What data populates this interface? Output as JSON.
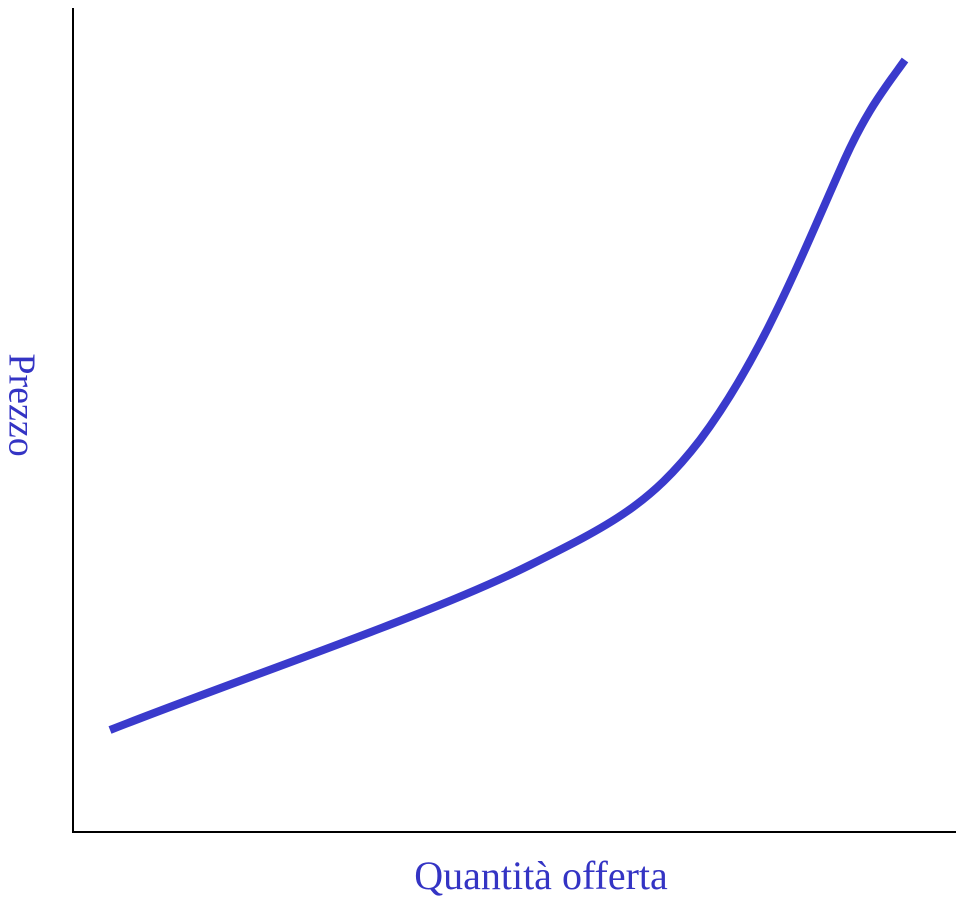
{
  "axes": {
    "y_label": "Prezzo",
    "x_label": "Quantità offerta"
  }
}
